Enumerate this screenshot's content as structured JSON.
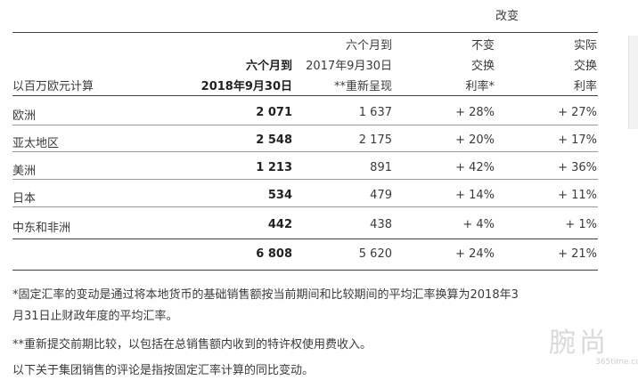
{
  "table": {
    "change_header": "改变",
    "col_label": "以百万欧元计算",
    "col2": {
      "line1": "六个月到",
      "line2": "2018年9月30日"
    },
    "col3": {
      "line1": "六个月到",
      "line2": "2017年9月30日",
      "line3": "**重新呈现"
    },
    "col4": {
      "line1": "不变",
      "line2": "交换",
      "line3": "利率*"
    },
    "col5": {
      "line1": "实际",
      "line2": "交换",
      "line3": "利率"
    },
    "rows": [
      {
        "region": "欧洲",
        "v2018": "2 071",
        "v2017": "1 637",
        "constant": "+ 28%",
        "actual": "+ 27%"
      },
      {
        "region": "亚太地区",
        "v2018": "2 548",
        "v2017": "2 175",
        "constant": "+ 20%",
        "actual": "+ 17%"
      },
      {
        "region": "美洲",
        "v2018": "1 213",
        "v2017": "891",
        "constant": "+ 42%",
        "actual": "+ 36%"
      },
      {
        "region": "日本",
        "v2018": "534",
        "v2017": "479",
        "constant": "+ 14%",
        "actual": "+ 11%"
      },
      {
        "region": "中东和非洲",
        "v2018": "442",
        "v2017": "438",
        "constant": "+ 4%",
        "actual": "+ 1%"
      }
    ],
    "total": {
      "v2018": "6 808",
      "v2017": "5 620",
      "constant": "+ 24%",
      "actual": "+ 21%"
    }
  },
  "notes": {
    "n1_line1": "*固定汇率的变动是通过将本地货币的基础销售额按当前期间和比较期间的平均汇率换算为2018年3",
    "n1_line2": "月31日止财政年度的平均汇率。",
    "n2": "**重新提交前期比较，以包括在总销售额内收到的特许权使用费收入。",
    "n3": "以下关于集团销售的评论是指按固定汇率计算的同比变动。"
  },
  "watermark": {
    "main": "腕尚",
    "sub": "365time.com"
  }
}
